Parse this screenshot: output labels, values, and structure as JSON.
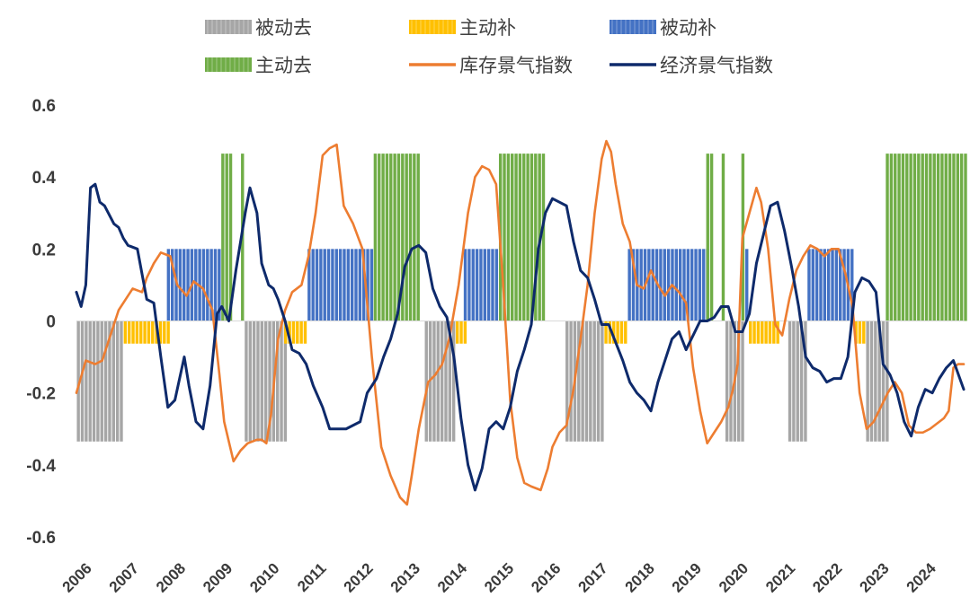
{
  "chart_data": {
    "type": "line",
    "title": "",
    "xlabel": "",
    "ylabel": "",
    "ylim": [
      -0.6,
      0.6
    ],
    "yticks": [
      0.6,
      0.4,
      0.2,
      0,
      -0.2,
      -0.4,
      -0.6
    ],
    "ytick_labels": [
      "0.6",
      "0.4",
      "0.2",
      "0",
      "-0.2",
      "-0.4",
      "-0.6"
    ],
    "x_range": [
      2006.0,
      2024.92
    ],
    "x_ticks": [
      "2006",
      "2007",
      "2008",
      "2009",
      "2010",
      "2011",
      "2012",
      "2013",
      "2014",
      "2015",
      "2016",
      "2017",
      "2018",
      "2019",
      "2020",
      "2021",
      "2022",
      "2023",
      "2024"
    ],
    "legend": [
      {
        "label": "被动去",
        "kind": "bar",
        "color": "#a6a6a6"
      },
      {
        "label": "主动补",
        "kind": "bar",
        "color": "#ffc000"
      },
      {
        "label": "被动补",
        "kind": "bar",
        "color": "#4472c4"
      },
      {
        "label": "主动去",
        "kind": "bar",
        "color": "#70ad47"
      },
      {
        "label": "库存景气指数",
        "kind": "line",
        "color": "#ed7d31"
      },
      {
        "label": "经济景气指数",
        "kind": "line",
        "color": "#0e2a6b"
      }
    ],
    "phases": [
      {
        "name": "被动去",
        "color": "#a6a6a6",
        "value": -0.335,
        "periods": [
          [
            2006.0,
            2007.0
          ],
          [
            2009.58,
            2010.42
          ],
          [
            2013.42,
            2014.08
          ],
          [
            2016.42,
            2017.25
          ],
          [
            2019.83,
            2020.17
          ],
          [
            2021.17,
            2021.58
          ],
          [
            2022.83,
            2023.25
          ]
        ]
      },
      {
        "name": "主动补",
        "color": "#ffc000",
        "value": -0.063,
        "periods": [
          [
            2007.0,
            2007.92
          ],
          [
            2010.42,
            2010.92
          ],
          [
            2014.08,
            2014.25
          ],
          [
            2017.25,
            2017.75
          ],
          [
            2020.33,
            2020.92
          ],
          [
            2022.58,
            2022.83
          ]
        ]
      },
      {
        "name": "被动补",
        "color": "#4472c4",
        "value": 0.2,
        "periods": [
          [
            2007.92,
            2009.08
          ],
          [
            2010.92,
            2012.33
          ],
          [
            2014.25,
            2015.0
          ],
          [
            2017.75,
            2019.42
          ],
          [
            2020.17,
            2020.33
          ],
          [
            2021.58,
            2022.58
          ]
        ]
      },
      {
        "name": "主动去",
        "color": "#70ad47",
        "value": 0.465,
        "periods": [
          [
            2009.08,
            2009.25
          ],
          [
            2009.5,
            2009.58
          ],
          [
            2012.33,
            2013.25
          ],
          [
            2015.0,
            2016.0
          ],
          [
            2019.42,
            2019.58
          ],
          [
            2019.75,
            2019.83
          ],
          [
            2020.17,
            2020.25
          ],
          [
            2023.25,
            2024.92
          ]
        ]
      }
    ],
    "series": [
      {
        "name": "库存景气指数",
        "color": "#ed7d31",
        "x": [
          2006.0,
          2006.2,
          2006.4,
          2006.55,
          2006.75,
          2006.9,
          2007.05,
          2007.2,
          2007.4,
          2007.5,
          2007.65,
          2007.8,
          2008.0,
          2008.15,
          2008.35,
          2008.5,
          2008.7,
          2008.9,
          2009.05,
          2009.15,
          2009.35,
          2009.5,
          2009.65,
          2009.85,
          2009.95,
          2010.05,
          2010.15,
          2010.3,
          2010.45,
          2010.6,
          2010.8,
          2010.95,
          2011.1,
          2011.25,
          2011.4,
          2011.55,
          2011.7,
          2011.9,
          2012.1,
          2012.3,
          2012.5,
          2012.7,
          2012.9,
          2013.05,
          2013.15,
          2013.3,
          2013.5,
          2013.65,
          2013.8,
          2013.95,
          2014.15,
          2014.35,
          2014.5,
          2014.65,
          2014.8,
          2014.95,
          2015.1,
          2015.25,
          2015.4,
          2015.55,
          2015.7,
          2015.9,
          2016.05,
          2016.15,
          2016.3,
          2016.45,
          2016.6,
          2016.75,
          2016.9,
          2017.05,
          2017.2,
          2017.3,
          2017.4,
          2017.5,
          2017.65,
          2017.8,
          2017.95,
          2018.1,
          2018.25,
          2018.4,
          2018.55,
          2018.7,
          2018.85,
          2019.0,
          2019.15,
          2019.3,
          2019.45,
          2019.6,
          2019.75,
          2019.9,
          2020.0,
          2020.1,
          2020.2,
          2020.35,
          2020.5,
          2020.6,
          2020.75,
          2020.9,
          2021.05,
          2021.2,
          2021.35,
          2021.5,
          2021.65,
          2021.8,
          2021.95,
          2022.1,
          2022.25,
          2022.4,
          2022.55,
          2022.7,
          2022.85,
          2023.0,
          2023.15,
          2023.3,
          2023.45,
          2023.6,
          2023.75,
          2023.9,
          2024.05,
          2024.2,
          2024.3,
          2024.4,
          2024.5,
          2024.6,
          2024.7,
          2024.8,
          2024.92
        ],
        "values": [
          -0.2,
          -0.11,
          -0.12,
          -0.11,
          -0.03,
          0.03,
          0.06,
          0.09,
          0.08,
          0.12,
          0.16,
          0.19,
          0.18,
          0.1,
          0.07,
          0.11,
          0.09,
          0.03,
          -0.15,
          -0.28,
          -0.39,
          -0.36,
          -0.34,
          -0.33,
          -0.33,
          -0.34,
          -0.26,
          -0.05,
          0.03,
          0.08,
          0.1,
          0.18,
          0.3,
          0.46,
          0.48,
          0.49,
          0.32,
          0.27,
          0.2,
          -0.1,
          -0.35,
          -0.43,
          -0.49,
          -0.51,
          -0.43,
          -0.3,
          -0.17,
          -0.15,
          -0.12,
          -0.05,
          0.1,
          0.3,
          0.4,
          0.43,
          0.42,
          0.38,
          0.1,
          -0.22,
          -0.38,
          -0.45,
          -0.46,
          -0.47,
          -0.41,
          -0.35,
          -0.31,
          -0.29,
          -0.19,
          -0.05,
          0.1,
          0.3,
          0.45,
          0.5,
          0.47,
          0.38,
          0.27,
          0.22,
          0.1,
          0.09,
          0.14,
          0.1,
          0.07,
          0.1,
          0.08,
          0.05,
          -0.13,
          -0.25,
          -0.34,
          -0.31,
          -0.28,
          -0.24,
          -0.19,
          -0.12,
          0.23,
          0.3,
          0.37,
          0.33,
          0.2,
          -0.01,
          -0.04,
          0.06,
          0.14,
          0.18,
          0.21,
          0.2,
          0.18,
          0.2,
          0.2,
          0.13,
          0.04,
          -0.2,
          -0.3,
          -0.28,
          -0.24,
          -0.2,
          -0.17,
          -0.2,
          -0.29,
          -0.31,
          -0.31,
          -0.3,
          -0.29,
          -0.28,
          -0.27,
          -0.25,
          -0.13,
          -0.12,
          -0.12
        ]
      },
      {
        "name": "经济景气指数",
        "color": "#0e2a6b",
        "x": [
          2006.0,
          2006.1,
          2006.2,
          2006.3,
          2006.4,
          2006.5,
          2006.6,
          2006.8,
          2006.9,
          2007.0,
          2007.1,
          2007.3,
          2007.5,
          2007.65,
          2007.8,
          2007.95,
          2008.1,
          2008.3,
          2008.4,
          2008.55,
          2008.7,
          2008.85,
          2009.0,
          2009.1,
          2009.25,
          2009.4,
          2009.6,
          2009.7,
          2009.85,
          2009.95,
          2010.1,
          2010.2,
          2010.3,
          2010.45,
          2010.6,
          2010.75,
          2010.9,
          2011.05,
          2011.25,
          2011.4,
          2011.6,
          2011.75,
          2011.9,
          2012.05,
          2012.2,
          2012.4,
          2012.55,
          2012.7,
          2012.85,
          2013.0,
          2013.15,
          2013.3,
          2013.45,
          2013.6,
          2013.75,
          2013.9,
          2014.05,
          2014.2,
          2014.35,
          2014.5,
          2014.65,
          2014.8,
          2014.95,
          2015.1,
          2015.25,
          2015.4,
          2015.55,
          2015.7,
          2015.85,
          2016.0,
          2016.15,
          2016.3,
          2016.45,
          2016.6,
          2016.75,
          2016.9,
          2017.05,
          2017.2,
          2017.35,
          2017.5,
          2017.65,
          2017.8,
          2017.95,
          2018.1,
          2018.25,
          2018.4,
          2018.55,
          2018.7,
          2018.85,
          2019.0,
          2019.15,
          2019.3,
          2019.45,
          2019.6,
          2019.75,
          2019.9,
          2020.05,
          2020.2,
          2020.35,
          2020.5,
          2020.65,
          2020.8,
          2020.95,
          2021.1,
          2021.25,
          2021.4,
          2021.55,
          2021.7,
          2021.85,
          2022.0,
          2022.15,
          2022.3,
          2022.45,
          2022.6,
          2022.75,
          2022.9,
          2023.05,
          2023.2,
          2023.35,
          2023.5,
          2023.65,
          2023.8,
          2023.95,
          2024.1,
          2024.25,
          2024.4,
          2024.55,
          2024.7,
          2024.92
        ],
        "values": [
          0.08,
          0.04,
          0.1,
          0.37,
          0.38,
          0.33,
          0.32,
          0.27,
          0.26,
          0.23,
          0.21,
          0.2,
          0.06,
          0.05,
          -0.1,
          -0.24,
          -0.22,
          -0.1,
          -0.18,
          -0.28,
          -0.3,
          -0.18,
          0.02,
          0.04,
          0.0,
          0.14,
          0.3,
          0.37,
          0.3,
          0.16,
          0.1,
          0.09,
          0.06,
          0.0,
          -0.08,
          -0.09,
          -0.12,
          -0.18,
          -0.24,
          -0.3,
          -0.3,
          -0.3,
          -0.29,
          -0.28,
          -0.2,
          -0.16,
          -0.1,
          -0.05,
          0.02,
          0.15,
          0.2,
          0.21,
          0.19,
          0.09,
          0.04,
          0.01,
          -0.1,
          -0.27,
          -0.4,
          -0.47,
          -0.41,
          -0.3,
          -0.28,
          -0.3,
          -0.24,
          -0.14,
          -0.08,
          -0.01,
          0.2,
          0.3,
          0.34,
          0.33,
          0.32,
          0.22,
          0.14,
          0.12,
          0.06,
          -0.01,
          -0.01,
          -0.06,
          -0.11,
          -0.17,
          -0.2,
          -0.22,
          -0.25,
          -0.17,
          -0.11,
          -0.05,
          -0.03,
          -0.08,
          -0.04,
          0.0,
          0.0,
          0.01,
          0.04,
          0.04,
          -0.03,
          -0.03,
          0.02,
          0.16,
          0.24,
          0.32,
          0.33,
          0.25,
          0.15,
          0.04,
          -0.1,
          -0.13,
          -0.14,
          -0.17,
          -0.16,
          -0.16,
          -0.1,
          0.08,
          0.12,
          0.11,
          0.08,
          -0.12,
          -0.15,
          -0.2,
          -0.28,
          -0.32,
          -0.24,
          -0.19,
          -0.2,
          -0.16,
          -0.13,
          -0.11,
          -0.19
        ]
      }
    ]
  }
}
